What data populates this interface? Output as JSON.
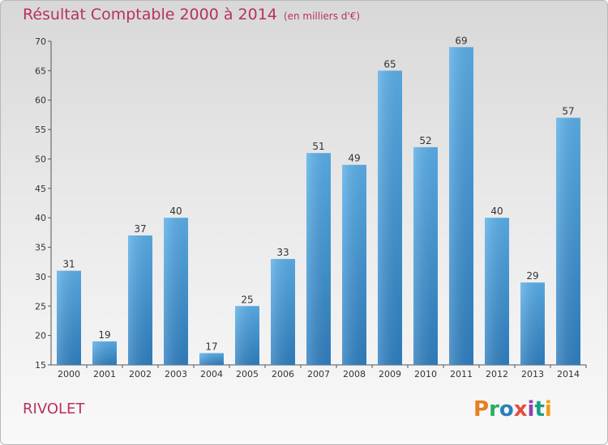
{
  "title": "Résultat Comptable 2000 à 2014",
  "unit": "(en milliers d'€)",
  "place": "RIVOLET",
  "logo": {
    "text": "Proxiti",
    "colors": [
      "#e67e22",
      "#27ae60",
      "#2980b9",
      "#e74c3c",
      "#8e44ad",
      "#16a085",
      "#f39c12"
    ]
  },
  "chart_data": {
    "type": "bar",
    "categories": [
      "2000",
      "2001",
      "2002",
      "2003",
      "2004",
      "2005",
      "2006",
      "2007",
      "2008",
      "2009",
      "2010",
      "2011",
      "2012",
      "2013",
      "2014"
    ],
    "values": [
      31,
      19,
      37,
      40,
      17,
      25,
      33,
      51,
      49,
      65,
      52,
      69,
      40,
      29,
      57
    ],
    "ylim": [
      15,
      70
    ],
    "yticks": [
      15,
      20,
      25,
      30,
      35,
      40,
      45,
      50,
      55,
      60,
      65,
      70
    ],
    "bar_color": "#4a9fdc",
    "grid": false
  }
}
